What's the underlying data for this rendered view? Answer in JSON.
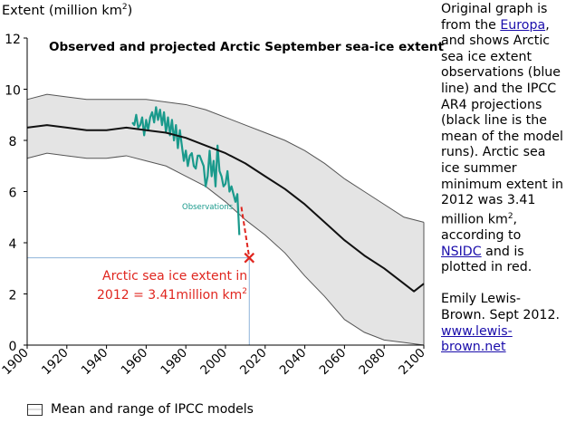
{
  "chart_data": {
    "type": "line",
    "title": "Observed and projected Arctic September sea-ice extent",
    "ylabel": "Extent (million km",
    "ylabel_sup": "2",
    "ylabel_close": ")",
    "xlim": [
      1900,
      2100
    ],
    "ylim": [
      0,
      12
    ],
    "x_ticks": [
      1900,
      1920,
      1940,
      1960,
      1980,
      2000,
      2020,
      2040,
      2060,
      2080,
      2100
    ],
    "y_ticks": [
      0,
      2,
      4,
      6,
      8,
      10,
      12
    ],
    "grid": false,
    "series": [
      {
        "name": "Observations",
        "color": "#1a9a8c",
        "x": [
          1953,
          1954,
          1955,
          1956,
          1957,
          1958,
          1959,
          1960,
          1961,
          1962,
          1963,
          1964,
          1965,
          1966,
          1967,
          1968,
          1969,
          1970,
          1971,
          1972,
          1973,
          1974,
          1975,
          1976,
          1977,
          1978,
          1979,
          1980,
          1981,
          1982,
          1983,
          1984,
          1985,
          1986,
          1987,
          1988,
          1989,
          1990,
          1991,
          1992,
          1993,
          1994,
          1995,
          1996,
          1997,
          1998,
          1999,
          2000,
          2001,
          2002,
          2003,
          2004,
          2005,
          2006,
          2007
        ],
        "y": [
          8.7,
          8.6,
          9.0,
          8.5,
          8.6,
          8.9,
          8.2,
          8.8,
          8.4,
          8.9,
          9.1,
          8.7,
          9.3,
          8.8,
          9.2,
          8.6,
          9.1,
          8.3,
          8.9,
          8.2,
          8.8,
          8.0,
          8.6,
          7.7,
          8.4,
          7.8,
          7.2,
          7.6,
          7.0,
          7.4,
          7.5,
          7.0,
          6.9,
          7.4,
          7.4,
          7.2,
          7.0,
          6.2,
          6.6,
          7.6,
          6.6,
          7.2,
          6.2,
          7.8,
          6.8,
          6.6,
          6.2,
          6.3,
          6.8,
          6.0,
          6.2,
          5.9,
          5.6,
          5.9,
          4.3
        ]
      },
      {
        "name": "IPCC model mean",
        "color": "#111111",
        "x": [
          1900,
          1910,
          1920,
          1930,
          1940,
          1950,
          1960,
          1970,
          1980,
          1990,
          2000,
          2010,
          2020,
          2030,
          2040,
          2050,
          2060,
          2070,
          2080,
          2090,
          2095,
          2100
        ],
        "y": [
          8.5,
          8.6,
          8.5,
          8.4,
          8.4,
          8.5,
          8.4,
          8.3,
          8.1,
          7.8,
          7.5,
          7.1,
          6.6,
          6.1,
          5.5,
          4.8,
          4.1,
          3.5,
          3.0,
          2.4,
          2.1,
          2.4
        ]
      }
    ],
    "model_range": {
      "x": [
        1900,
        1910,
        1920,
        1930,
        1940,
        1950,
        1960,
        1970,
        1980,
        1990,
        2000,
        2010,
        2020,
        2030,
        2040,
        2050,
        2060,
        2070,
        2080,
        2090,
        2100
      ],
      "upper": [
        9.6,
        9.8,
        9.7,
        9.6,
        9.6,
        9.6,
        9.6,
        9.5,
        9.4,
        9.2,
        8.9,
        8.6,
        8.3,
        8.0,
        7.6,
        7.1,
        6.5,
        6.0,
        5.5,
        5.0,
        4.8
      ],
      "lower": [
        7.3,
        7.5,
        7.4,
        7.3,
        7.3,
        7.4,
        7.2,
        7.0,
        6.6,
        6.2,
        5.6,
        4.9,
        4.3,
        3.6,
        2.7,
        1.9,
        1.0,
        0.5,
        0.2,
        0.1,
        0.0
      ],
      "fill": "#e4e4e4"
    },
    "highlight": {
      "year": 2012,
      "value": 3.41,
      "color": "#e0261f",
      "label_line1": "Arctic sea ice extent in",
      "label_line2": "2012 = 3.41million km",
      "label_sup": "2",
      "series_label": "Observations"
    },
    "legend": {
      "label": "Mean and range of IPCC models",
      "placement": "bottom-left"
    }
  },
  "note": {
    "p1_before": "Original graph is from  the ",
    "p1_link": "Europa",
    "p1_after": ", and shows Arctic sea ice extent observations (blue line) and the IPCC AR4 projections (black line is the mean of the model runs). Arctic sea ice summer minimum extent in 2012 was 3.41 million km",
    "p1_sup": "2",
    "p1_mid": ", according to ",
    "p1_link2": "NSIDC",
    "p1_end": " and is plotted in red.",
    "p2": "Emily Lewis-Brown. Sept 2012.",
    "p2_link": "www.lewis-brown.net"
  }
}
